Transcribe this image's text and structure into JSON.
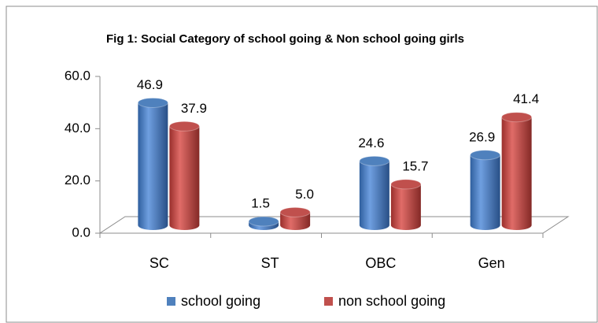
{
  "chart_data": {
    "type": "bar",
    "title": "Fig 1: Social Category of school going & Non school going girls",
    "categories": [
      "SC",
      "ST",
      "OBC",
      "Gen"
    ],
    "series": [
      {
        "name": "school going",
        "color": "#4f81bd",
        "values": [
          46.9,
          1.5,
          24.6,
          26.9
        ],
        "value_labels": [
          "46.9",
          "1.5",
          "24.6",
          "26.9"
        ]
      },
      {
        "name": "non school going",
        "color": "#c0504d",
        "values": [
          37.9,
          5.0,
          15.7,
          41.4
        ],
        "value_labels": [
          "37.9",
          "5.0",
          "15.7",
          "41.4"
        ]
      }
    ],
    "ylim": [
      0,
      60
    ],
    "yticks": [
      {
        "value": 0,
        "label": "0.0"
      },
      {
        "value": 20,
        "label": "20.0"
      },
      {
        "value": 40,
        "label": "40.0"
      },
      {
        "value": 60,
        "label": "60.0"
      }
    ],
    "legend": "bottom"
  }
}
